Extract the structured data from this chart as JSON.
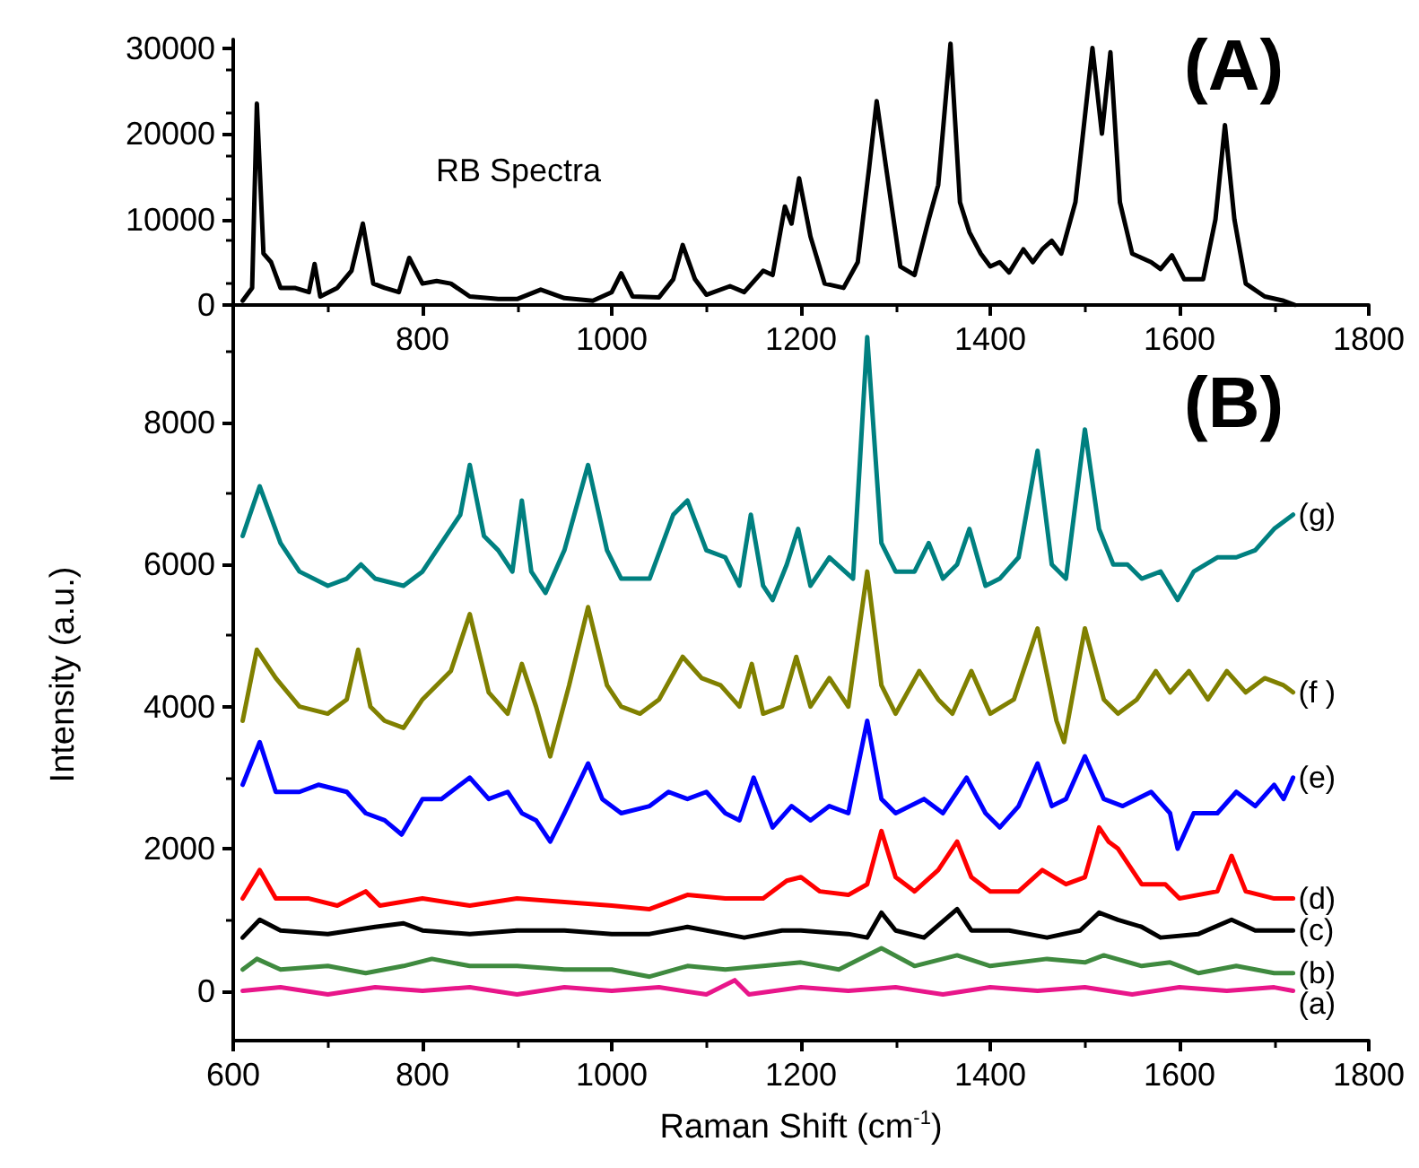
{
  "chart_data": [
    {
      "type": "line",
      "title": "(A)",
      "annotations": [
        "RB Spectra"
      ],
      "xlim": [
        600,
        1800
      ],
      "xticks": [
        {
          "value": 600,
          "label": null
        },
        800,
        1000,
        1200,
        1400,
        1600,
        1800
      ],
      "ylim": [
        0,
        31000
      ],
      "yticks": [
        0,
        10000,
        20000,
        30000
      ],
      "series": [
        {
          "color": "#000000",
          "x": [
            610,
            620,
            625,
            632,
            640,
            650,
            665,
            680,
            686,
            692,
            710,
            725,
            737,
            748,
            760,
            775,
            786,
            800,
            815,
            830,
            850,
            880,
            900,
            925,
            950,
            980,
            1000,
            1010,
            1022,
            1050,
            1065,
            1075,
            1088,
            1100,
            1125,
            1140,
            1160,
            1170,
            1183,
            1190,
            1198,
            1210,
            1225,
            1245,
            1260,
            1272,
            1280,
            1290,
            1305,
            1320,
            1335,
            1345,
            1358,
            1368,
            1378,
            1390,
            1400,
            1410,
            1420,
            1435,
            1445,
            1455,
            1465,
            1475,
            1490,
            1500,
            1508,
            1518,
            1527,
            1537,
            1550,
            1570,
            1580,
            1592,
            1605,
            1625,
            1638,
            1648,
            1658,
            1670,
            1690,
            1710,
            1722
          ],
          "values": [
            500,
            2000,
            23500,
            6000,
            5000,
            2000,
            2000,
            1500,
            4800,
            1000,
            2000,
            4000,
            9500,
            2500,
            2000,
            1500,
            5500,
            2500,
            2800,
            2500,
            1000,
            700,
            700,
            1800,
            800,
            500,
            1500,
            3700,
            1000,
            900,
            3000,
            7000,
            3000,
            1200,
            2200,
            1500,
            4000,
            3500,
            11500,
            9500,
            14800,
            8000,
            2500,
            2000,
            5000,
            16000,
            23800,
            16000,
            4500,
            3500,
            10000,
            14000,
            30500,
            12000,
            8500,
            6000,
            4500,
            5000,
            3800,
            6500,
            5000,
            6500,
            7500,
            6000,
            12000,
            22000,
            30000,
            20000,
            29500,
            12000,
            6000,
            5000,
            4200,
            5800,
            3000,
            3000,
            10000,
            21000,
            10000,
            2500,
            1000,
            500,
            0
          ]
        }
      ]
    },
    {
      "type": "line",
      "title": "(B)",
      "xlabel": "Raman Shift (cm$^{-1}$)",
      "ylabel": "Intensity (a.u.)",
      "xlim": [
        600,
        1800
      ],
      "xticks": [
        600,
        800,
        1000,
        1200,
        1400,
        1600,
        1800
      ],
      "ylim": [
        -700,
        9600
      ],
      "yticks": [
        0,
        2000,
        4000,
        6000,
        8000
      ],
      "series": [
        {
          "name": "(g)",
          "color": "#008080",
          "x": [
            610,
            628,
            650,
            670,
            700,
            720,
            735,
            750,
            780,
            800,
            820,
            840,
            850,
            865,
            880,
            895,
            905,
            915,
            930,
            950,
            975,
            995,
            1010,
            1040,
            1065,
            1080,
            1100,
            1120,
            1135,
            1147,
            1160,
            1170,
            1185,
            1197,
            1210,
            1230,
            1255,
            1270,
            1285,
            1300,
            1320,
            1335,
            1350,
            1365,
            1378,
            1395,
            1410,
            1430,
            1450,
            1465,
            1480,
            1500,
            1515,
            1530,
            1545,
            1560,
            1580,
            1598,
            1615,
            1640,
            1660,
            1680,
            1700,
            1720
          ],
          "values": [
            6400,
            7100,
            6300,
            5900,
            5700,
            5800,
            6000,
            5800,
            5700,
            5900,
            6300,
            6700,
            7400,
            6400,
            6200,
            5900,
            6900,
            5900,
            5600,
            6200,
            7400,
            6200,
            5800,
            5800,
            6700,
            6900,
            6200,
            6100,
            5700,
            6700,
            5700,
            5500,
            6000,
            6500,
            5700,
            6100,
            5800,
            9200,
            6300,
            5900,
            5900,
            6300,
            5800,
            6000,
            6500,
            5700,
            5800,
            6100,
            7600,
            6000,
            5800,
            7900,
            6500,
            6000,
            6000,
            5800,
            5900,
            5500,
            5900,
            6100,
            6100,
            6200,
            6500,
            6700
          ]
        },
        {
          "name": "(f )",
          "color": "#808000",
          "x": [
            610,
            625,
            645,
            670,
            700,
            720,
            732,
            745,
            760,
            780,
            800,
            830,
            850,
            870,
            890,
            905,
            920,
            935,
            955,
            975,
            995,
            1010,
            1030,
            1050,
            1075,
            1095,
            1115,
            1135,
            1148,
            1160,
            1180,
            1195,
            1210,
            1230,
            1250,
            1270,
            1285,
            1300,
            1325,
            1345,
            1360,
            1380,
            1400,
            1425,
            1450,
            1470,
            1478,
            1500,
            1520,
            1535,
            1555,
            1575,
            1590,
            1610,
            1630,
            1650,
            1670,
            1690,
            1710,
            1720
          ],
          "values": [
            3800,
            4800,
            4400,
            4000,
            3900,
            4100,
            4800,
            4000,
            3800,
            3700,
            4100,
            4500,
            5300,
            4200,
            3900,
            4600,
            4000,
            3300,
            4300,
            5400,
            4300,
            4000,
            3900,
            4100,
            4700,
            4400,
            4300,
            4000,
            4600,
            3900,
            4000,
            4700,
            4000,
            4400,
            4000,
            5900,
            4300,
            3900,
            4500,
            4100,
            3900,
            4500,
            3900,
            4100,
            5100,
            3800,
            3500,
            5100,
            4100,
            3900,
            4100,
            4500,
            4200,
            4500,
            4100,
            4500,
            4200,
            4400,
            4300,
            4200
          ]
        },
        {
          "name": "(e)",
          "color": "#0000ff",
          "x": [
            610,
            628,
            645,
            670,
            690,
            720,
            740,
            760,
            778,
            800,
            820,
            850,
            870,
            890,
            905,
            920,
            935,
            950,
            975,
            990,
            1010,
            1040,
            1060,
            1080,
            1100,
            1120,
            1135,
            1150,
            1170,
            1190,
            1210,
            1230,
            1250,
            1270,
            1285,
            1300,
            1330,
            1350,
            1375,
            1395,
            1410,
            1430,
            1450,
            1465,
            1480,
            1500,
            1520,
            1540,
            1570,
            1590,
            1598,
            1615,
            1640,
            1660,
            1680,
            1700,
            1710,
            1720
          ],
          "values": [
            2900,
            3500,
            2800,
            2800,
            2900,
            2800,
            2500,
            2400,
            2200,
            2700,
            2700,
            3000,
            2700,
            2800,
            2500,
            2400,
            2100,
            2500,
            3200,
            2700,
            2500,
            2600,
            2800,
            2700,
            2800,
            2500,
            2400,
            3000,
            2300,
            2600,
            2400,
            2600,
            2500,
            3800,
            2700,
            2500,
            2700,
            2500,
            3000,
            2500,
            2300,
            2600,
            3200,
            2600,
            2700,
            3300,
            2700,
            2600,
            2800,
            2500,
            2000,
            2500,
            2500,
            2800,
            2600,
            2900,
            2700,
            3000
          ]
        },
        {
          "name": "(d)",
          "color": "#ff0000",
          "x": [
            610,
            628,
            645,
            680,
            710,
            740,
            755,
            800,
            850,
            900,
            950,
            1000,
            1040,
            1080,
            1120,
            1160,
            1185,
            1200,
            1220,
            1250,
            1270,
            1285,
            1300,
            1320,
            1345,
            1365,
            1380,
            1400,
            1430,
            1455,
            1480,
            1500,
            1515,
            1525,
            1535,
            1560,
            1585,
            1600,
            1640,
            1655,
            1670,
            1700,
            1720
          ],
          "values": [
            1300,
            1700,
            1300,
            1300,
            1200,
            1400,
            1200,
            1300,
            1200,
            1300,
            1250,
            1200,
            1150,
            1350,
            1300,
            1300,
            1550,
            1600,
            1400,
            1350,
            1500,
            2250,
            1600,
            1400,
            1700,
            2100,
            1600,
            1400,
            1400,
            1700,
            1500,
            1600,
            2300,
            2100,
            2000,
            1500,
            1500,
            1300,
            1400,
            1900,
            1400,
            1300,
            1300
          ]
        },
        {
          "name": "(c)",
          "color": "#000000",
          "x": [
            610,
            628,
            650,
            700,
            750,
            780,
            800,
            850,
            900,
            950,
            1000,
            1040,
            1080,
            1140,
            1180,
            1200,
            1250,
            1270,
            1285,
            1300,
            1330,
            1365,
            1380,
            1420,
            1460,
            1495,
            1515,
            1535,
            1560,
            1580,
            1620,
            1655,
            1680,
            1720
          ],
          "values": [
            750,
            1000,
            850,
            800,
            900,
            950,
            850,
            800,
            850,
            850,
            800,
            800,
            900,
            750,
            850,
            850,
            800,
            750,
            1100,
            850,
            750,
            1150,
            850,
            850,
            750,
            850,
            1100,
            1000,
            900,
            750,
            800,
            1000,
            850,
            850
          ]
        },
        {
          "name": "(b)",
          "color": "#3f8a3f",
          "x": [
            610,
            625,
            650,
            700,
            740,
            780,
            810,
            850,
            900,
            950,
            1000,
            1040,
            1080,
            1120,
            1160,
            1200,
            1240,
            1285,
            1320,
            1365,
            1400,
            1460,
            1500,
            1520,
            1560,
            1590,
            1620,
            1660,
            1700,
            1720
          ],
          "values": [
            300,
            450,
            300,
            350,
            250,
            350,
            450,
            350,
            350,
            300,
            300,
            200,
            350,
            300,
            350,
            400,
            300,
            600,
            350,
            500,
            350,
            450,
            400,
            500,
            350,
            400,
            250,
            350,
            250,
            250
          ]
        },
        {
          "name": "(a)",
          "color": "#e8168a",
          "x": [
            610,
            650,
            700,
            750,
            800,
            850,
            900,
            950,
            1000,
            1050,
            1100,
            1130,
            1145,
            1200,
            1250,
            1300,
            1350,
            1400,
            1450,
            1500,
            1550,
            1600,
            1650,
            1700,
            1720
          ],
          "values": [
            0,
            50,
            -50,
            50,
            0,
            50,
            -50,
            50,
            0,
            50,
            -50,
            150,
            -50,
            50,
            0,
            50,
            -50,
            50,
            0,
            50,
            -50,
            50,
            0,
            50,
            0
          ]
        }
      ]
    }
  ]
}
